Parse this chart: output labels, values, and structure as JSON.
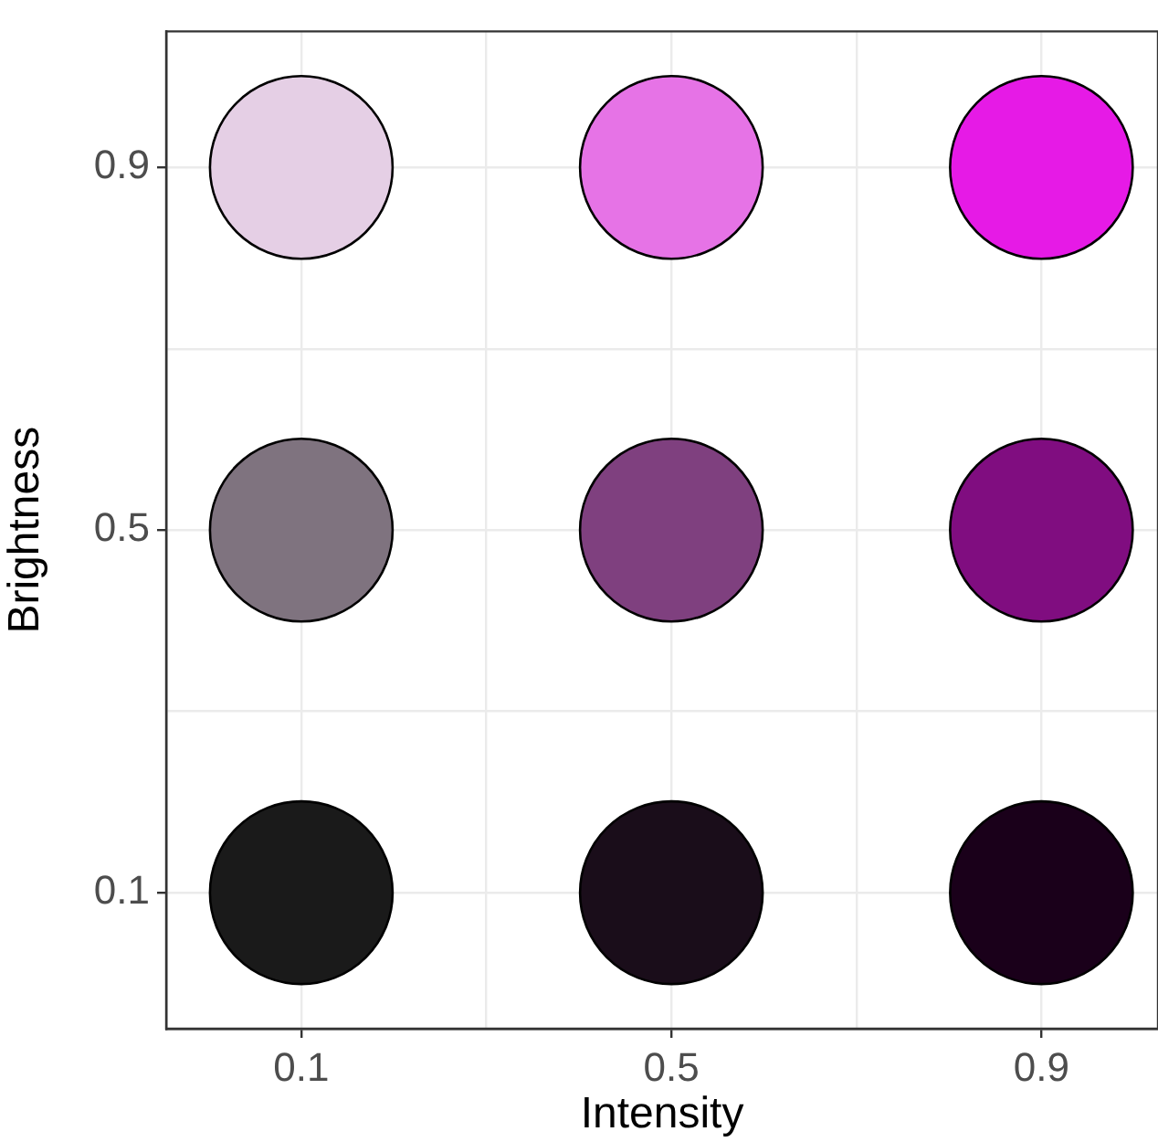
{
  "chart_data": {
    "type": "scatter",
    "xlabel": "Intensity",
    "ylabel": "Brightness",
    "marker": "circle",
    "grid": true,
    "legend": false,
    "xlim": [
      -0.046,
      1.026
    ],
    "ylim": [
      -0.05,
      1.05
    ],
    "xticks": [
      0.1,
      {
        "value": 0.3,
        "label": null
      },
      0.5,
      {
        "value": 0.7,
        "label": null
      },
      0.9
    ],
    "yticks": [
      0.1,
      {
        "value": 0.3,
        "label": null
      },
      0.5,
      {
        "value": 0.7,
        "label": null
      },
      0.9
    ],
    "series": [
      {
        "x": [
          0.1,
          0.5,
          0.9,
          0.1,
          0.5,
          0.9,
          0.1,
          0.5,
          0.9
        ],
        "values": [
          0.9,
          0.9,
          0.9,
          0.5,
          0.5,
          0.5,
          0.1,
          0.1,
          0.1
        ],
        "colors": [
          "#e5cfe5",
          "#e673e6",
          "#e61ae6",
          "#7f737f",
          "#7f407f",
          "#800d80",
          "#1a1a1a",
          "#1a0d1a",
          "#1a001a"
        ]
      }
    ]
  }
}
